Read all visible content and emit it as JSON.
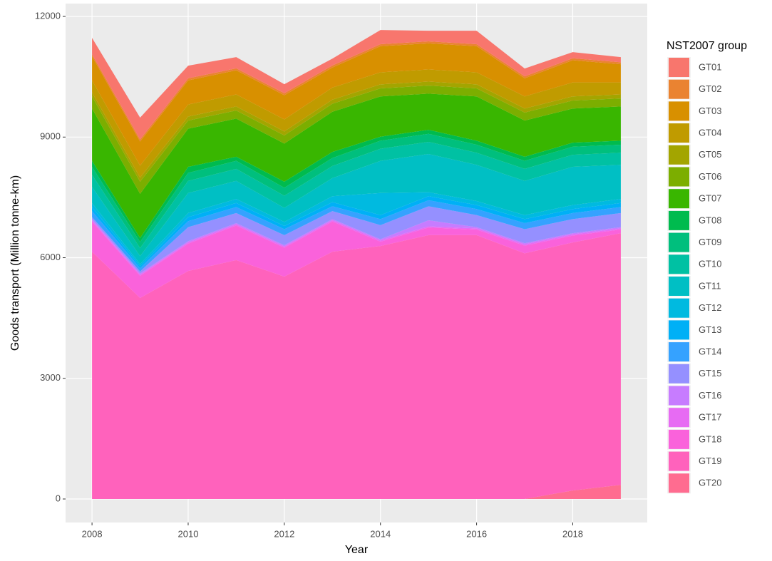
{
  "chart_data": {
    "type": "area",
    "x_label": "Year",
    "y_label": "Goods transport (Million tonne-km)",
    "legend_title": "NST2007 group",
    "legend": "right",
    "grid": true,
    "stacked": true,
    "x": [
      2008,
      2009,
      2010,
      2011,
      2012,
      2013,
      2014,
      2015,
      2016,
      2017,
      2018,
      2019
    ],
    "xlim": [
      2007.45,
      2019.55
    ],
    "xticks": [
      2008,
      2010,
      2012,
      2014,
      2016,
      2018
    ],
    "ylim": [
      -585,
      12320
    ],
    "yticks": [
      0,
      3000,
      6000,
      9000,
      12000
    ],
    "series": [
      {
        "name": "GT01",
        "color": "#F8766D",
        "values": [
          408,
          543,
          316,
          279,
          225,
          170,
          353,
          265,
          335,
          195,
          153,
          129
        ]
      },
      {
        "name": "GT02",
        "color": "#EA8331",
        "values": [
          50,
          50,
          50,
          50,
          50,
          50,
          50,
          50,
          50,
          50,
          50,
          50
        ]
      },
      {
        "name": "GT03",
        "color": "#D89000",
        "values": [
          600,
          600,
          600,
          600,
          600,
          500,
          650,
          650,
          650,
          450,
          550,
          450
        ]
      },
      {
        "name": "GT04",
        "color": "#C09B00",
        "values": [
          300,
          300,
          300,
          300,
          300,
          300,
          300,
          300,
          300,
          300,
          350,
          300
        ]
      },
      {
        "name": "GT05",
        "color": "#A3A500",
        "values": [
          100,
          100,
          100,
          100,
          100,
          100,
          100,
          100,
          100,
          100,
          100,
          100
        ]
      },
      {
        "name": "GT06",
        "color": "#7CAE00",
        "values": [
          300,
          300,
          200,
          200,
          200,
          200,
          200,
          200,
          200,
          200,
          200,
          200
        ]
      },
      {
        "name": "GT07",
        "color": "#39B600",
        "values": [
          1300,
          1100,
          950,
          950,
          950,
          1000,
          1000,
          900,
          1100,
          900,
          850,
          850
        ]
      },
      {
        "name": "GT08",
        "color": "#00BB4E",
        "values": [
          150,
          100,
          150,
          100,
          150,
          150,
          100,
          100,
          100,
          100,
          100,
          100
        ]
      },
      {
        "name": "GT09",
        "color": "#00BF7D",
        "values": [
          200,
          150,
          200,
          200,
          200,
          200,
          200,
          200,
          200,
          200,
          200,
          200
        ]
      },
      {
        "name": "GT10",
        "color": "#00C1A3",
        "values": [
          300,
          200,
          300,
          300,
          300,
          300,
          300,
          300,
          300,
          300,
          300,
          300
        ]
      },
      {
        "name": "GT11",
        "color": "#00BFC4",
        "values": [
          400,
          200,
          500,
          450,
          350,
          450,
          800,
          950,
          900,
          850,
          950,
          850
        ]
      },
      {
        "name": "GT12",
        "color": "#00BAE0",
        "values": [
          100,
          50,
          100,
          100,
          100,
          150,
          550,
          100,
          100,
          100,
          100,
          100
        ]
      },
      {
        "name": "GT13",
        "color": "#00B0F6",
        "values": [
          100,
          50,
          100,
          100,
          80,
          100,
          100,
          100,
          100,
          100,
          100,
          100
        ]
      },
      {
        "name": "GT14",
        "color": "#35A2FF",
        "values": [
          150,
          80,
          150,
          150,
          150,
          120,
          150,
          150,
          150,
          150,
          150,
          150
        ]
      },
      {
        "name": "GT15",
        "color": "#9590FF",
        "values": [
          50,
          50,
          350,
          250,
          250,
          200,
          350,
          350,
          300,
          350,
          350,
          350
        ]
      },
      {
        "name": "GT16",
        "color": "#C77CFF",
        "values": [
          30,
          30,
          30,
          30,
          30,
          30,
          30,
          150,
          30,
          30,
          30,
          30
        ]
      },
      {
        "name": "GT17",
        "color": "#E76BF3",
        "values": [
          30,
          30,
          30,
          30,
          30,
          30,
          30,
          30,
          30,
          30,
          30,
          30
        ]
      },
      {
        "name": "GT18",
        "color": "#FA62DB",
        "values": [
          750,
          550,
          680,
          860,
          720,
          750,
          110,
          190,
          140,
          190,
          170,
          90
        ]
      },
      {
        "name": "GT19",
        "color": "#FF62BC",
        "values": [
          6150,
          5000,
          5670,
          5940,
          5530,
          6150,
          6290,
          6560,
          6560,
          6110,
          6170,
          6260
        ]
      },
      {
        "name": "GT20",
        "color": "#FF6C90",
        "values": [
          0,
          0,
          0,
          0,
          0,
          0,
          0,
          0,
          0,
          0,
          210,
          350
        ]
      }
    ]
  }
}
